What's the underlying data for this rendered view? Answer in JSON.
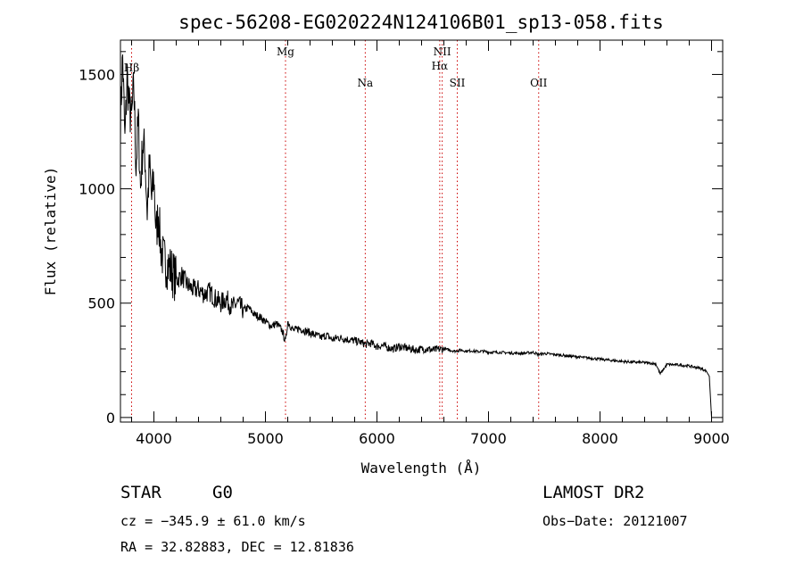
{
  "chart_data": {
    "type": "line",
    "title": "spec-56208-EG020224N124106B01_sp13-058.fits",
    "xlabel": "Wavelength (Å)",
    "ylabel": "Flux (relative)",
    "xlim": [
      3700,
      9100
    ],
    "ylim": [
      -20,
      1650
    ],
    "xticks": [
      4000,
      5000,
      6000,
      7000,
      8000,
      9000
    ],
    "yticks": [
      0,
      500,
      1000,
      1500
    ],
    "grid": false,
    "series": [
      {
        "x": [
          3700,
          3720,
          3740,
          3760,
          3780,
          3800,
          3820,
          3840,
          3860,
          3880,
          3900,
          3920,
          3940,
          3960,
          3980,
          4000,
          4020,
          4040,
          4060,
          4080,
          4100,
          4150,
          4200,
          4250,
          4300,
          4350,
          4400,
          4450,
          4500,
          4550,
          4600,
          4650,
          4700,
          4750,
          4800,
          4850,
          4900,
          4950,
          5000,
          5050,
          5100,
          5150,
          5180,
          5200,
          5250,
          5300,
          5350,
          5400,
          5450,
          5500,
          5550,
          5600,
          5650,
          5700,
          5750,
          5800,
          5850,
          5900,
          5950,
          6000,
          6050,
          6100,
          6150,
          6200,
          6250,
          6300,
          6350,
          6400,
          6450,
          6500,
          6550,
          6600,
          6650,
          6700,
          6750,
          6800,
          6850,
          6900,
          6950,
          7000,
          7100,
          7200,
          7300,
          7400,
          7450,
          7500,
          7600,
          7700,
          7800,
          7900,
          8000,
          8100,
          8200,
          8300,
          8400,
          8500,
          8540,
          8600,
          8700,
          8800,
          8900,
          8950,
          8980,
          9000
        ],
        "y": [
          1300,
          1580,
          1200,
          1500,
          1350,
          1300,
          1450,
          1100,
          1300,
          1000,
          1200,
          1150,
          900,
          1100,
          950,
          1050,
          800,
          900,
          750,
          700,
          680,
          650,
          600,
          620,
          580,
          560,
          560,
          540,
          550,
          520,
          500,
          520,
          480,
          500,
          470,
          480,
          450,
          440,
          420,
          400,
          410,
          380,
          330,
          420,
          380,
          390,
          380,
          370,
          360,
          350,
          360,
          340,
          350,
          345,
          340,
          335,
          330,
          320,
          325,
          310,
          315,
          305,
          300,
          310,
          305,
          300,
          295,
          300,
          300,
          295,
          298,
          300,
          295,
          290,
          295,
          290,
          292,
          288,
          290,
          285,
          285,
          282,
          280,
          285,
          275,
          280,
          275,
          270,
          265,
          260,
          255,
          250,
          245,
          242,
          240,
          235,
          190,
          232,
          230,
          225,
          215,
          205,
          180,
          0
        ]
      }
    ],
    "annotations": [
      {
        "label": "Hβ",
        "x": 3800
      },
      {
        "label": "Mg",
        "x": 5180
      },
      {
        "label": "Na",
        "x": 5895
      },
      {
        "label": "NII",
        "x": 6585
      },
      {
        "label": "Hα",
        "x": 6563
      },
      {
        "label": "SII",
        "x": 6720
      },
      {
        "label": "OII",
        "x": 7450
      }
    ]
  },
  "info": {
    "object_class": "STAR",
    "subclass": "G0",
    "survey": "LAMOST DR2",
    "velocity": "cz = −345.9 ± 61.0 km/s",
    "obs_date": "Obs−Date: 20121007",
    "coords": "RA =  32.82883, DEC =  12.81836"
  },
  "colors": {
    "line": "#000000",
    "marker": "#cc0000",
    "background": "#ffffff"
  }
}
